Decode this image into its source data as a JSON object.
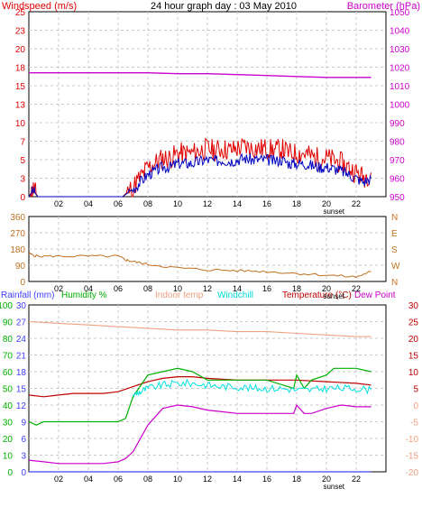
{
  "header": {
    "left_title": "Windspeed (m/s)",
    "center_title": "24 hour graph day : 03 May 2010",
    "right_title": "Barometer (hPa)"
  },
  "panel2": {
    "compass": [
      "N",
      "W",
      "S",
      "E",
      "N"
    ]
  },
  "panel3": {
    "labels": {
      "rainfall": "Rainfall (mm)",
      "humidity": "Humidity %",
      "indoor": "Indoor temp",
      "windchill": "Windchill",
      "temperature": "Temperature (°C)",
      "dewpoint": "Dew Point"
    }
  },
  "sunset_label": "sunset",
  "colors": {
    "wind_gust": "#e00000",
    "wind_avg": "#0000c0",
    "barometer": "#cc00cc",
    "direction": "#c07020",
    "rainfall": "#4040ff",
    "humidity": "#00b000",
    "indoor": "#f0a080",
    "windchill": "#00e0e0",
    "temperature": "#c00000",
    "dewpoint": "#cc00cc",
    "grid": "#c8c8c8",
    "frame": "#000000"
  },
  "chart_data": [
    {
      "type": "line",
      "title": "24 hour graph day : 03 May 2010",
      "xticks": [
        "02",
        "04",
        "06",
        "08",
        "10",
        "12",
        "14",
        "16",
        "18",
        "20",
        "22"
      ],
      "left_axis": {
        "label": "Windspeed (m/s)",
        "ylim": [
          0,
          25
        ],
        "ticks": [
          0,
          3,
          5,
          7,
          10,
          13,
          15,
          18,
          20,
          23,
          25
        ]
      },
      "right_axis": {
        "label": "Barometer (hPa)",
        "ylim": [
          950,
          1050
        ],
        "ticks": [
          950,
          960,
          970,
          980,
          990,
          1000,
          1010,
          1020,
          1030,
          1040,
          1050
        ]
      },
      "series": [
        {
          "name": "Windspeed",
          "axis": "left",
          "x": [
            0,
            0.3,
            0.6,
            6.3,
            7.0,
            7.5,
            8.0,
            8.5,
            9.0,
            9.5,
            10.0,
            10.5,
            11.0,
            11.5,
            12.0,
            12.5,
            13.0,
            13.5,
            14.0,
            14.5,
            15.0,
            15.5,
            16.0,
            16.5,
            17.0,
            17.5,
            18.0,
            18.5,
            19.0,
            19.5,
            20.0,
            20.5,
            21.0,
            21.5,
            22.0,
            22.5,
            23.0
          ],
          "y": [
            0,
            0.8,
            0,
            0,
            1.0,
            2.0,
            3.0,
            3.5,
            4.0,
            4.0,
            4.5,
            4.5,
            4.5,
            4.8,
            5.0,
            4.8,
            5.0,
            4.8,
            5.0,
            5.2,
            5.0,
            5.0,
            5.0,
            4.8,
            5.0,
            4.5,
            4.5,
            4.5,
            4.2,
            4.0,
            4.0,
            3.8,
            3.5,
            3.0,
            2.5,
            2.0,
            2.5
          ]
        },
        {
          "name": "Barometer",
          "axis": "right",
          "x": [
            0,
            2,
            4,
            6,
            8,
            10,
            12,
            14,
            16,
            18,
            20,
            22,
            23
          ],
          "y": [
            1017,
            1017,
            1017,
            1017,
            1017,
            1016.5,
            1016.5,
            1016,
            1015.5,
            1015,
            1014.5,
            1014.5,
            1014.5
          ]
        }
      ]
    },
    {
      "type": "line",
      "xticks": [
        "02",
        "04",
        "06",
        "08",
        "10",
        "12",
        "14",
        "16",
        "18",
        "20",
        "22"
      ],
      "left_axis": {
        "ylim": [
          0,
          360
        ],
        "ticks": [
          0,
          90,
          180,
          270,
          360
        ]
      },
      "right_axis": {
        "ticks": [
          "N",
          "W",
          "S",
          "E",
          "N"
        ]
      },
      "series": [
        {
          "name": "Wind direction",
          "x": [
            0,
            0.5,
            2,
            4,
            6,
            6.5,
            7,
            8,
            10,
            12,
            14,
            16,
            18,
            20,
            22,
            23
          ],
          "y": [
            155,
            140,
            140,
            140,
            140,
            120,
            110,
            95,
            75,
            65,
            60,
            55,
            45,
            35,
            25,
            55
          ]
        }
      ]
    },
    {
      "type": "line",
      "xticks": [
        "02",
        "04",
        "06",
        "08",
        "10",
        "12",
        "14",
        "16",
        "18",
        "20",
        "22"
      ],
      "left_axis_humidity": {
        "ylim": [
          0,
          100
        ],
        "ticks": [
          0,
          10,
          20,
          30,
          40,
          50,
          60,
          70,
          80,
          90,
          100
        ]
      },
      "left_axis_rainfall": {
        "ylim": [
          0,
          30
        ],
        "ticks": [
          0,
          3,
          6,
          9,
          12,
          15,
          18,
          21,
          24,
          27,
          30
        ]
      },
      "right_axis_temperature": {
        "ylim": [
          -20,
          30
        ],
        "ticks": [
          -20,
          -15,
          -10,
          -5,
          0,
          5,
          10,
          15,
          20,
          25,
          30
        ]
      },
      "series": [
        {
          "name": "Indoor temp",
          "axis": "temperature",
          "x": [
            0,
            2,
            4,
            6,
            8,
            10,
            12,
            14,
            16,
            18,
            20,
            22,
            23
          ],
          "y": [
            25,
            24.5,
            24,
            23.5,
            23,
            22.5,
            22.5,
            22,
            22,
            21.5,
            21,
            20.5,
            20.5
          ]
        },
        {
          "name": "Temperature",
          "axis": "temperature",
          "x": [
            0,
            1,
            2,
            3,
            4,
            5,
            6,
            7,
            8,
            9,
            10,
            11,
            12,
            14,
            16,
            18,
            20,
            22,
            23
          ],
          "y": [
            3,
            2.5,
            3,
            3.5,
            3.5,
            3.5,
            4,
            5.5,
            7,
            8,
            8.5,
            8.5,
            8,
            7.5,
            7.5,
            7.5,
            7,
            6.5,
            6
          ]
        },
        {
          "name": "Humidity",
          "axis": "humidity",
          "x": [
            0,
            0.5,
            1,
            2,
            4,
            6,
            6.5,
            7,
            8,
            9,
            10,
            11,
            12,
            14,
            16,
            17.8,
            18,
            18.5,
            19,
            20,
            20.5,
            22,
            23
          ],
          "y": [
            30,
            28,
            30,
            30,
            30,
            30,
            32,
            45,
            58,
            60,
            62,
            60,
            55,
            55,
            55,
            50,
            58,
            50,
            55,
            58,
            62,
            62,
            60
          ]
        },
        {
          "name": "Windchill",
          "axis": "temperature",
          "x": [
            7,
            7.5,
            8,
            9,
            10,
            11,
            12,
            13,
            14,
            15,
            16,
            17,
            18,
            19,
            20,
            21,
            22,
            23
          ],
          "y": [
            3,
            4,
            5,
            6,
            6.5,
            6.5,
            6,
            5.5,
            5.5,
            5,
            5,
            5,
            4.5,
            4.5,
            5,
            5,
            5,
            4.5
          ]
        },
        {
          "name": "Dew Point",
          "axis": "temperature",
          "x": [
            0,
            1,
            2,
            3,
            4,
            5,
            6,
            6.5,
            7,
            8,
            9,
            10,
            11,
            12,
            14,
            16,
            17.8,
            18,
            18.5,
            19,
            20,
            21,
            22,
            23
          ],
          "y": [
            -16.5,
            -17,
            -17.5,
            -17.5,
            -17.5,
            -17.5,
            -17,
            -16,
            -14,
            -6,
            -1,
            0,
            -0.5,
            -1.5,
            -2.5,
            -2.5,
            -2.5,
            0,
            -2.5,
            -2.5,
            -1,
            0,
            -0.5,
            -0.5
          ]
        },
        {
          "name": "Rainfall",
          "axis": "rainfall",
          "x": [
            0,
            23
          ],
          "y": [
            0,
            0
          ]
        }
      ]
    }
  ]
}
